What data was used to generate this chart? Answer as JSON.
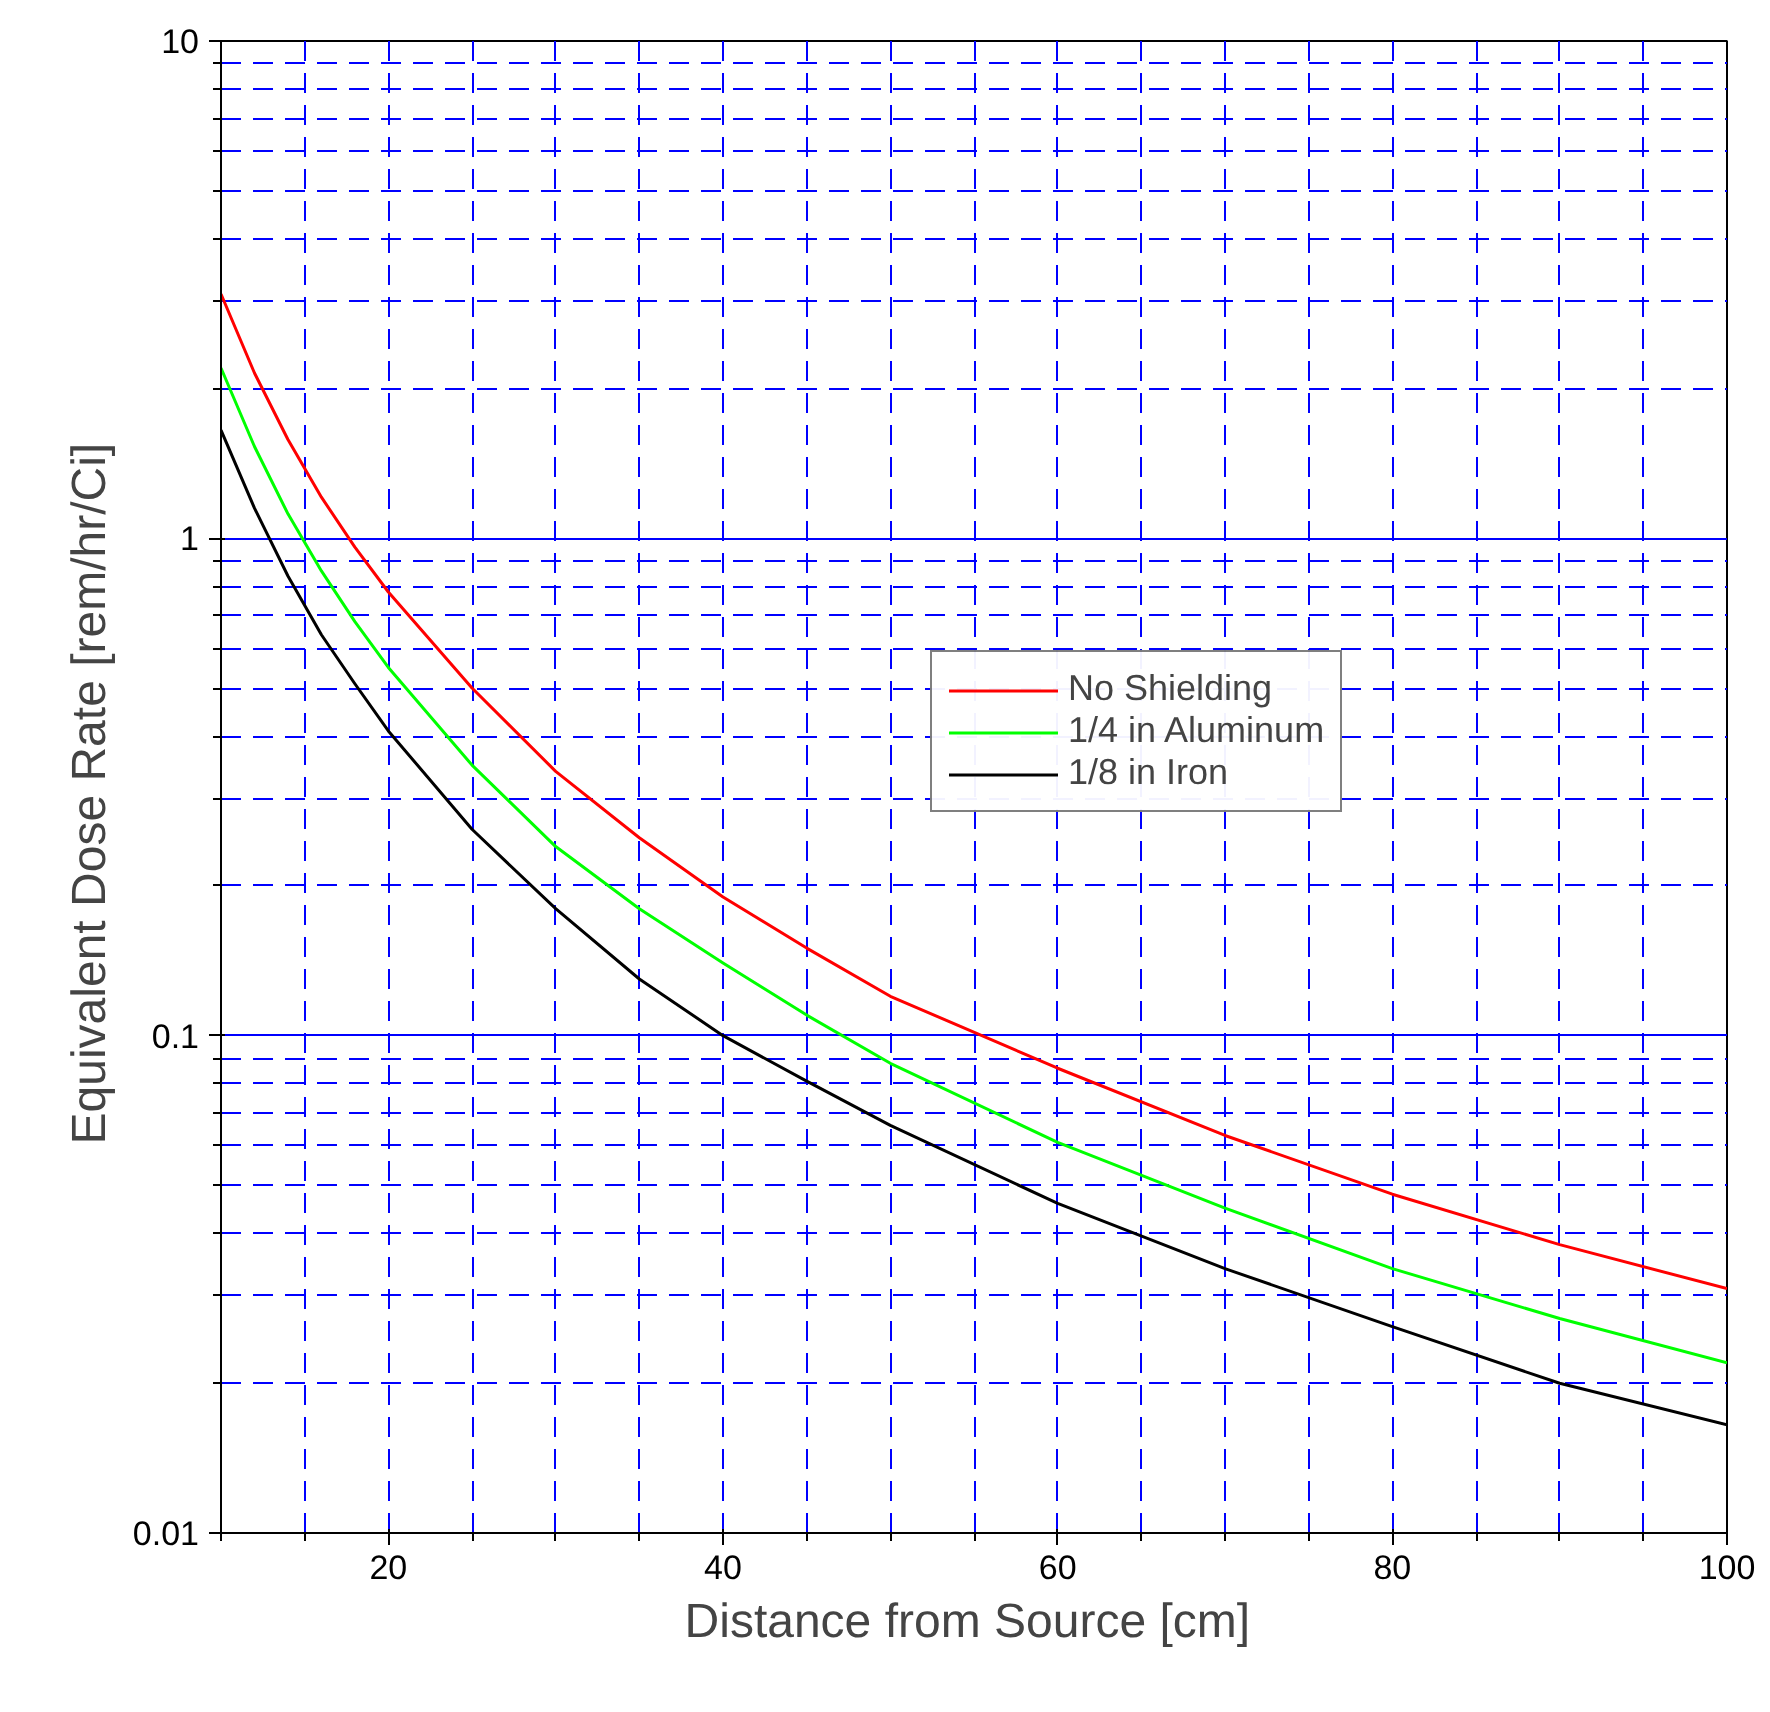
{
  "chart_data": {
    "type": "line",
    "xlabel": "Distance from Source  [cm]",
    "ylabel": "Equivalent Dose Rate  [rem/hr/Ci]",
    "x": [
      10,
      12,
      14,
      16,
      18,
      20,
      25,
      30,
      35,
      40,
      45,
      50,
      60,
      70,
      80,
      90,
      100
    ],
    "series": [
      {
        "name": "No Shielding",
        "color": "#ff0000",
        "values": [
          3.1,
          2.15,
          1.58,
          1.21,
          0.96,
          0.78,
          0.5,
          0.34,
          0.25,
          0.19,
          0.15,
          0.12,
          0.086,
          0.063,
          0.048,
          0.038,
          0.031
        ]
      },
      {
        "name": "1/4 in Aluminum",
        "color": "#00ff00",
        "values": [
          2.2,
          1.53,
          1.12,
          0.86,
          0.68,
          0.55,
          0.35,
          0.24,
          0.18,
          0.14,
          0.11,
          0.088,
          0.061,
          0.045,
          0.034,
          0.027,
          0.022
        ]
      },
      {
        "name": "1/8 in Iron",
        "color": "#000000",
        "values": [
          1.65,
          1.15,
          0.84,
          0.64,
          0.51,
          0.41,
          0.26,
          0.18,
          0.13,
          0.1,
          0.081,
          0.066,
          0.046,
          0.034,
          0.026,
          0.02,
          0.0165
        ]
      }
    ],
    "xlim": [
      10,
      100
    ],
    "xticks": [
      20,
      40,
      60,
      80,
      100
    ],
    "ylim": [
      0.01,
      10
    ],
    "yticks": [
      0.01,
      0.1,
      1,
      10
    ],
    "log": "y",
    "grid": true,
    "legend": "right",
    "marker": "none",
    "line_style": "solid"
  }
}
